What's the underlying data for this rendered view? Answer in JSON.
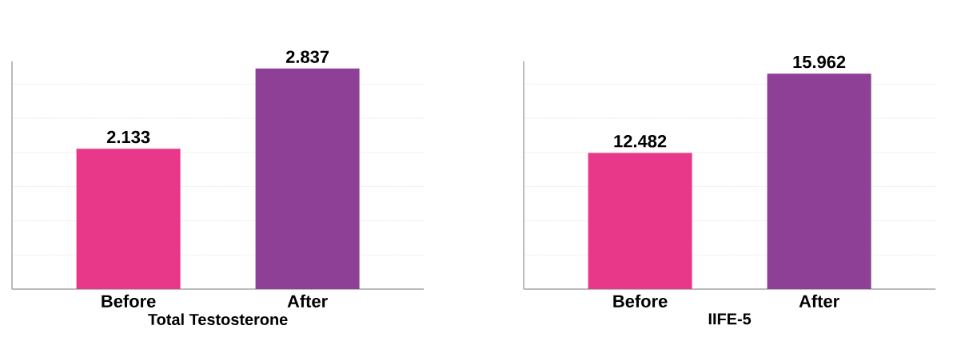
{
  "chart_data": [
    {
      "type": "bar",
      "categories": [
        "Before",
        "After"
      ],
      "values": [
        2.133,
        2.837
      ],
      "colors": [
        "#e8388a",
        "#8e3f96"
      ],
      "xlabel": "Total Testosterone",
      "data_labels": true,
      "ylim": [
        0.9,
        2.9
      ],
      "yticks": [
        {
          "value": 1.2,
          "label": null
        },
        {
          "value": 1.5,
          "label": null
        },
        {
          "value": 1.8,
          "label": null
        },
        {
          "value": 2.1,
          "label": null
        },
        {
          "value": 2.4,
          "label": null
        },
        {
          "value": 2.7,
          "label": null
        }
      ],
      "grid": "y",
      "tick_labels": "x"
    },
    {
      "type": "bar",
      "categories": [
        "Before",
        "After"
      ],
      "values": [
        12.482,
        15.962
      ],
      "colors": [
        "#e8388a",
        "#8e3f96"
      ],
      "xlabel": "IIFE-5",
      "data_labels": true,
      "ylim": [
        6.5,
        16.5
      ],
      "yticks": [
        {
          "value": 8,
          "label": null
        },
        {
          "value": 9.5,
          "label": null
        },
        {
          "value": 11,
          "label": null
        },
        {
          "value": 12.5,
          "label": null
        },
        {
          "value": 14,
          "label": null
        },
        {
          "value": 15.5,
          "label": null
        }
      ],
      "grid": "y",
      "tick_labels": "x"
    }
  ]
}
